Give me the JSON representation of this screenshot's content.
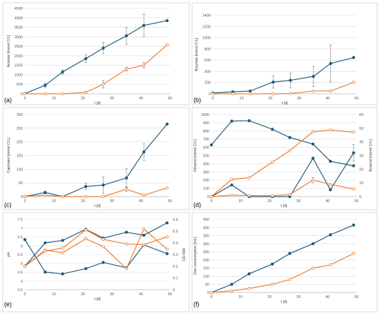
{
  "colors": {
    "blue": "#1f5c7a",
    "orange": "#ed7d31",
    "grid": "#d9d9d9"
  },
  "chart_data": [
    {
      "id": "a",
      "panel_label": "(a)",
      "type": "line",
      "xlabel": "t [d]",
      "ylabel": "Acetate [mmol C/L]",
      "xlim": [
        0,
        50
      ],
      "ylim": [
        0,
        4500
      ],
      "xticks": [
        0,
        10,
        20,
        30,
        40,
        50
      ],
      "yticks": [
        0,
        500,
        1000,
        1500,
        2000,
        2500,
        3000,
        3500,
        4000,
        4500
      ],
      "grid": true,
      "series": [
        {
          "color": "#1f5c7a",
          "marker": "filled",
          "axis": "left",
          "x": [
            0,
            7,
            13,
            21,
            27,
            35,
            41,
            49
          ],
          "y": [
            10,
            450,
            1150,
            1850,
            2400,
            3050,
            3600,
            3850
          ],
          "err": [
            0,
            120,
            120,
            200,
            300,
            450,
            600,
            0
          ]
        },
        {
          "color": "#ed7d31",
          "marker": "open",
          "axis": "left",
          "x": [
            0,
            7,
            13,
            21,
            27,
            35,
            41,
            49
          ],
          "y": [
            0,
            0,
            0,
            80,
            500,
            1300,
            1500,
            2580
          ],
          "err": [
            0,
            0,
            0,
            60,
            200,
            100,
            150,
            0
          ]
        }
      ]
    },
    {
      "id": "b",
      "panel_label": "(b)",
      "type": "line",
      "xlabel": "t [d]",
      "ylabel": "Butyrate [mmol C/L]",
      "xlim": [
        0,
        50
      ],
      "ylim": [
        0,
        1400
      ],
      "xticks": [
        0,
        10,
        20,
        30,
        40,
        50
      ],
      "yticks": [
        0,
        200,
        400,
        600,
        800,
        1000,
        1200,
        1400
      ],
      "grid": true,
      "series": [
        {
          "color": "#1f5c7a",
          "marker": "filled",
          "axis": "left",
          "x": [
            0,
            7,
            13,
            21,
            27,
            35,
            41,
            49
          ],
          "y": [
            15,
            35,
            50,
            210,
            240,
            310,
            540,
            645
          ],
          "err": [
            0,
            10,
            10,
            110,
            130,
            180,
            330,
            0
          ]
        },
        {
          "color": "#ed7d31",
          "marker": "open",
          "axis": "left",
          "x": [
            0,
            7,
            13,
            21,
            27,
            35,
            41,
            49
          ],
          "y": [
            0,
            0,
            0,
            0,
            5,
            50,
            50,
            205
          ],
          "err": [
            0,
            0,
            0,
            0,
            0,
            10,
            10,
            0
          ]
        }
      ]
    },
    {
      "id": "c",
      "panel_label": "(c)",
      "type": "line",
      "xlabel": "t [d]",
      "ylabel": "Caproate [mmol C/L]",
      "xlim": [
        0,
        50
      ],
      "ylim": [
        0,
        300
      ],
      "xticks": [
        0,
        10,
        20,
        30,
        40,
        50
      ],
      "yticks": [
        0,
        50,
        100,
        150,
        200,
        250,
        300
      ],
      "grid": true,
      "series": [
        {
          "color": "#1f5c7a",
          "marker": "filled",
          "axis": "left",
          "x": [
            0,
            7,
            13,
            21,
            27,
            35,
            41,
            49
          ],
          "y": [
            0,
            15,
            0,
            37,
            42,
            68,
            163,
            265
          ],
          "err": [
            0,
            5,
            0,
            12,
            30,
            35,
            30,
            0
          ]
        },
        {
          "color": "#ed7d31",
          "marker": "open",
          "axis": "left",
          "x": [
            0,
            7,
            13,
            21,
            27,
            35,
            41,
            49
          ],
          "y": [
            0,
            5,
            0,
            0,
            0,
            27,
            5,
            32
          ],
          "err": [
            0,
            0,
            0,
            0,
            0,
            8,
            0,
            0
          ]
        }
      ]
    },
    {
      "id": "d",
      "panel_label": "(d)",
      "type": "line",
      "xlabel": "t [d]",
      "ylabel": "Ethanol [mmol C/L]",
      "y2label": "Butanol [mmol C/L]",
      "xlim": [
        0,
        50
      ],
      "ylim": [
        0,
        1000
      ],
      "y2lim": [
        0,
        60
      ],
      "xticks": [
        0,
        10,
        20,
        30,
        40,
        50
      ],
      "yticks": [
        0,
        100,
        200,
        300,
        400,
        500,
        600,
        700,
        800,
        900,
        1000
      ],
      "y2ticks": [
        0,
        10,
        20,
        30,
        40,
        50,
        60
      ],
      "grid": true,
      "series": [
        {
          "color": "#1f5c7a",
          "marker": "filled",
          "axis": "left",
          "x": [
            0,
            7,
            13,
            21,
            27,
            35,
            41,
            49
          ],
          "y": [
            630,
            920,
            925,
            820,
            720,
            640,
            430,
            375
          ],
          "err": [
            0,
            0,
            0,
            0,
            0,
            0,
            0,
            0
          ]
        },
        {
          "color": "#ed7d31",
          "marker": "open",
          "axis": "left",
          "x": [
            0,
            7,
            13,
            21,
            27,
            35,
            41,
            49
          ],
          "y": [
            0,
            210,
            230,
            420,
            560,
            790,
            810,
            785
          ],
          "err": [
            0,
            0,
            0,
            0,
            0,
            0,
            0,
            0
          ]
        },
        {
          "color": "#1f5c7a",
          "marker": "filled",
          "axis": "right",
          "x": [
            0,
            7,
            13,
            21,
            27,
            35,
            41,
            49
          ],
          "y": [
            0,
            8.5,
            0,
            0,
            0,
            28,
            5,
            32
          ],
          "err": [
            0,
            0,
            0,
            0,
            0,
            0,
            0,
            6
          ]
        },
        {
          "color": "#ed7d31",
          "marker": "open",
          "axis": "right",
          "x": [
            0,
            7,
            13,
            21,
            27,
            35,
            41,
            49
          ],
          "y": [
            0,
            1,
            0.8,
            0.6,
            1.5,
            12,
            9,
            5.5
          ],
          "err": [
            0,
            0,
            0,
            0,
            0,
            2,
            0,
            0
          ]
        }
      ]
    },
    {
      "id": "e",
      "panel_label": "(e)",
      "type": "line",
      "xlabel": "t [d]",
      "ylabel": "pH",
      "y2label": "OD 600",
      "xlim": [
        0,
        50
      ],
      "ylim": [
        3.5,
        7.5
      ],
      "y2lim": [
        0,
        0.6
      ],
      "xticks": [
        0,
        10,
        20,
        30,
        40,
        50
      ],
      "yticks": [
        3.5,
        4,
        4.5,
        5,
        5.5,
        6,
        6.5,
        7,
        7.5
      ],
      "y2ticks": [
        0,
        0.1,
        0.2,
        0.3,
        0.4,
        0.5,
        0.6
      ],
      "grid": true,
      "series": [
        {
          "color": "#1f5c7a",
          "marker": "filled",
          "axis": "left",
          "x": [
            0,
            7,
            13,
            21,
            27,
            35,
            41,
            49
          ],
          "y": [
            6.35,
            4.5,
            4.4,
            4.7,
            5.05,
            4.75,
            6.05,
            5.55
          ],
          "err": [
            0,
            0,
            0,
            0,
            0,
            0,
            0,
            0
          ]
        },
        {
          "color": "#ed7d31",
          "marker": "open",
          "axis": "left",
          "x": [
            0,
            7,
            13,
            21,
            27,
            35,
            41,
            49
          ],
          "y": [
            4.85,
            5.75,
            5.6,
            6.4,
            5.95,
            4.7,
            6.95,
            5.8
          ],
          "err": [
            0,
            0,
            0,
            0,
            0,
            0,
            0,
            0
          ]
        },
        {
          "color": "#1f5c7a",
          "marker": "filled",
          "axis": "right",
          "x": [
            0,
            7,
            13,
            21,
            27,
            35,
            41,
            49
          ],
          "y": [
            0.2,
            0.4,
            0.42,
            0.515,
            0.44,
            0.49,
            0.465,
            0.57
          ],
          "err": [
            0,
            0,
            0,
            0,
            0,
            0,
            0,
            0
          ]
        },
        {
          "color": "#ed7d31",
          "marker": "open",
          "axis": "right",
          "x": [
            0,
            7,
            13,
            21,
            27,
            35,
            41,
            49
          ],
          "y": [
            0.2,
            0.33,
            0.355,
            0.51,
            0.43,
            0.39,
            0.385,
            0.45
          ],
          "err": [
            0,
            0,
            0,
            0,
            0,
            0,
            0,
            0
          ]
        }
      ]
    },
    {
      "id": "f",
      "panel_label": "(f)",
      "type": "line",
      "xlabel": "t [d]",
      "ylabel": "Gas consumption [mL]",
      "xlim": [
        0,
        50
      ],
      "ylim": [
        0,
        450
      ],
      "xticks": [
        0,
        10,
        20,
        30,
        40,
        50
      ],
      "yticks": [
        0,
        50,
        100,
        150,
        200,
        250,
        300,
        350,
        400,
        450
      ],
      "grid": true,
      "series": [
        {
          "color": "#1f5c7a",
          "marker": "filled",
          "axis": "left",
          "x": [
            0,
            7,
            13,
            21,
            27,
            35,
            41,
            49
          ],
          "y": [
            0,
            50,
            115,
            175,
            240,
            300,
            355,
            415
          ],
          "err": [
            0,
            0,
            0,
            0,
            0,
            0,
            0,
            0
          ]
        },
        {
          "color": "#ed7d31",
          "marker": "open",
          "axis": "left",
          "x": [
            0,
            7,
            13,
            21,
            27,
            35,
            41,
            49
          ],
          "y": [
            0,
            10,
            25,
            50,
            80,
            150,
            170,
            240
          ],
          "err": [
            0,
            0,
            0,
            0,
            0,
            0,
            0,
            0
          ]
        }
      ]
    }
  ]
}
